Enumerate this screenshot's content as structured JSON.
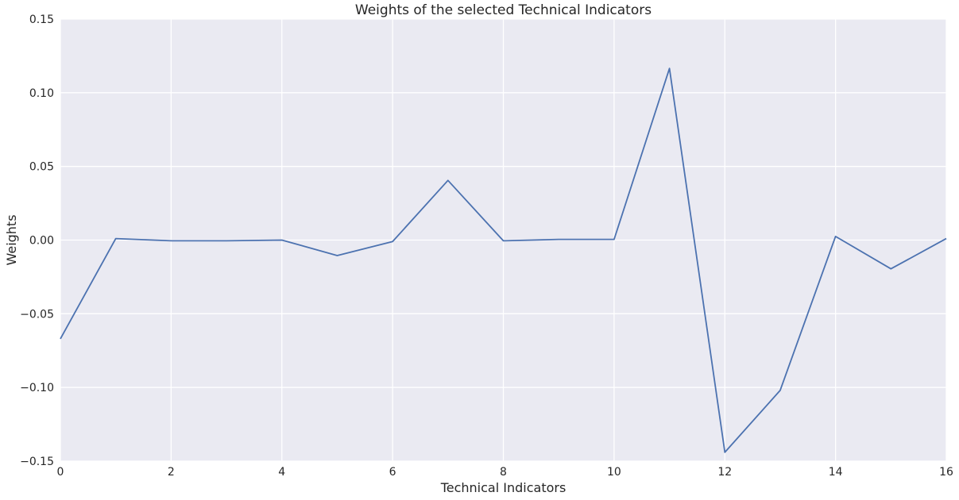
{
  "chart_data": {
    "type": "line",
    "title": "Weights of the selected Technical Indicators",
    "xlabel": "Technical Indicators",
    "ylabel": "Weights",
    "xlim": [
      0,
      16
    ],
    "ylim": [
      -0.15,
      0.15
    ],
    "xticks": [
      0,
      2,
      4,
      6,
      8,
      10,
      12,
      14,
      16
    ],
    "xtick_labels": [
      "0",
      "2",
      "4",
      "6",
      "8",
      "10",
      "12",
      "14",
      "16"
    ],
    "yticks": [
      -0.15,
      -0.1,
      -0.05,
      0.0,
      0.05,
      0.1,
      0.15
    ],
    "ytick_labels": [
      "−0.15",
      "−0.10",
      "−0.05",
      "0.00",
      "0.05",
      "0.10",
      "0.15"
    ],
    "grid": true,
    "series": [
      {
        "color": "#4C72B0",
        "x": [
          0,
          1,
          2,
          3,
          4,
          5,
          6,
          7,
          8,
          9,
          10,
          11,
          12,
          13,
          14,
          15,
          16
        ],
        "y": [
          -0.067,
          0.001,
          -0.0005,
          -0.0005,
          0.0,
          -0.0105,
          -0.001,
          0.0405,
          -0.0005,
          0.0005,
          0.0005,
          0.1165,
          -0.144,
          -0.102,
          0.0025,
          -0.0195,
          0.001
        ]
      }
    ]
  }
}
